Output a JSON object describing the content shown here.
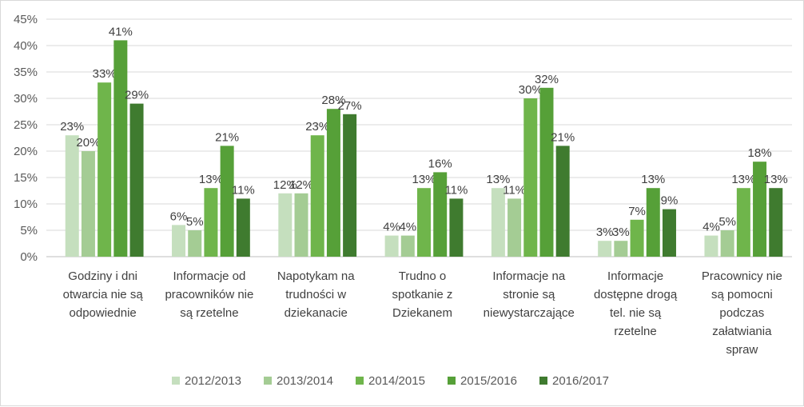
{
  "chart_data": {
    "type": "bar",
    "title": "",
    "xlabel": "",
    "ylabel": "",
    "ylim": [
      0,
      45
    ],
    "yticks": [
      "0%",
      "5%",
      "10%",
      "15%",
      "20%",
      "25%",
      "30%",
      "35%",
      "40%",
      "45%"
    ],
    "grid": true,
    "legend_position": "bottom",
    "categories": [
      [
        "Godziny i dni",
        "otwarcia nie są",
        "odpowiednie"
      ],
      [
        "Informacje od",
        "pracowników nie",
        "są rzetelne"
      ],
      [
        "Napotykam na",
        "trudności w",
        "dziekanacie"
      ],
      [
        "Trudno o",
        "spotkanie z",
        "Dziekanem"
      ],
      [
        "Informacje na",
        "stronie są",
        "niewystarczające"
      ],
      [
        "Informacje",
        "dostępne drogą",
        "tel. nie są",
        "rzetelne"
      ],
      [
        "Pracownicy nie",
        "są pomocni",
        "podczas",
        "załatwiania",
        "spraw"
      ]
    ],
    "series": [
      {
        "name": "2012/2013",
        "color": "#c5dfbe",
        "values": [
          23,
          6,
          12,
          4,
          13,
          3,
          4
        ],
        "labels": [
          "23%",
          "6%",
          "12%",
          "4%",
          "13%",
          "3%",
          "4%"
        ]
      },
      {
        "name": "2013/2014",
        "color": "#a4cc94",
        "values": [
          20,
          5,
          12,
          4,
          11,
          3,
          5
        ],
        "labels": [
          "20%",
          "5%",
          "12%",
          "4%",
          "11%",
          "3%",
          "5%"
        ]
      },
      {
        "name": "2014/2015",
        "color": "#6fb54b",
        "values": [
          33,
          13,
          23,
          13,
          30,
          7,
          13
        ],
        "labels": [
          "33%",
          "13%",
          "23%",
          "13%",
          "30%",
          "7%",
          "13%"
        ]
      },
      {
        "name": "2015/2016",
        "color": "#56a038",
        "values": [
          41,
          21,
          28,
          16,
          32,
          13,
          18
        ],
        "labels": [
          "41%",
          "21%",
          "28%",
          "16%",
          "32%",
          "13%",
          "18%"
        ]
      },
      {
        "name": "2016/2017",
        "color": "#3f7b2f",
        "values": [
          29,
          11,
          27,
          11,
          21,
          9,
          13
        ],
        "labels": [
          "29%",
          "11%",
          "27%",
          "11%",
          "21%",
          "9%",
          "13%"
        ]
      }
    ]
  }
}
